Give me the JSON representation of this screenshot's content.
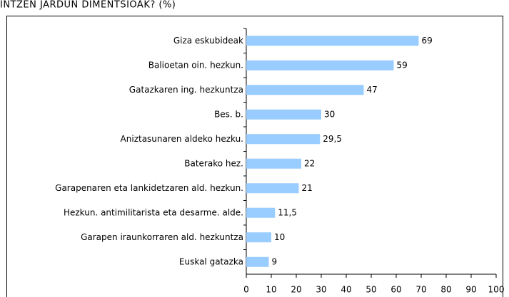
{
  "chart_data": {
    "type": "bar",
    "orientation": "horizontal",
    "title": "INTZEN JARDUN DIMENTSIOAK? (%)",
    "categories": [
      "Giza eskubideak",
      "Balioetan oin. hezkun.",
      "Gatazkaren ing. hezkuntza",
      "Bes. b.",
      "Aniztasunaren aldeko hezku.",
      "Baterako hez.",
      "Garapenaren eta lankidetzaren ald. hezkun.",
      "Hezkun. antimilitarista eta desarme. alde.",
      "Garapen iraunkorraren ald. hezkuntza",
      "Euskal gatazka"
    ],
    "values": [
      69,
      59,
      47,
      30,
      29.5,
      22,
      21,
      11.5,
      10,
      9
    ],
    "value_labels": [
      "69",
      "59",
      "47",
      "30",
      "29,5",
      "22",
      "21",
      "11,5",
      "10",
      "9"
    ],
    "color": "#99ccff",
    "xlim": [
      0,
      100
    ],
    "xticks": [
      0,
      10,
      20,
      30,
      40,
      50,
      60,
      70,
      80,
      90,
      100
    ]
  }
}
